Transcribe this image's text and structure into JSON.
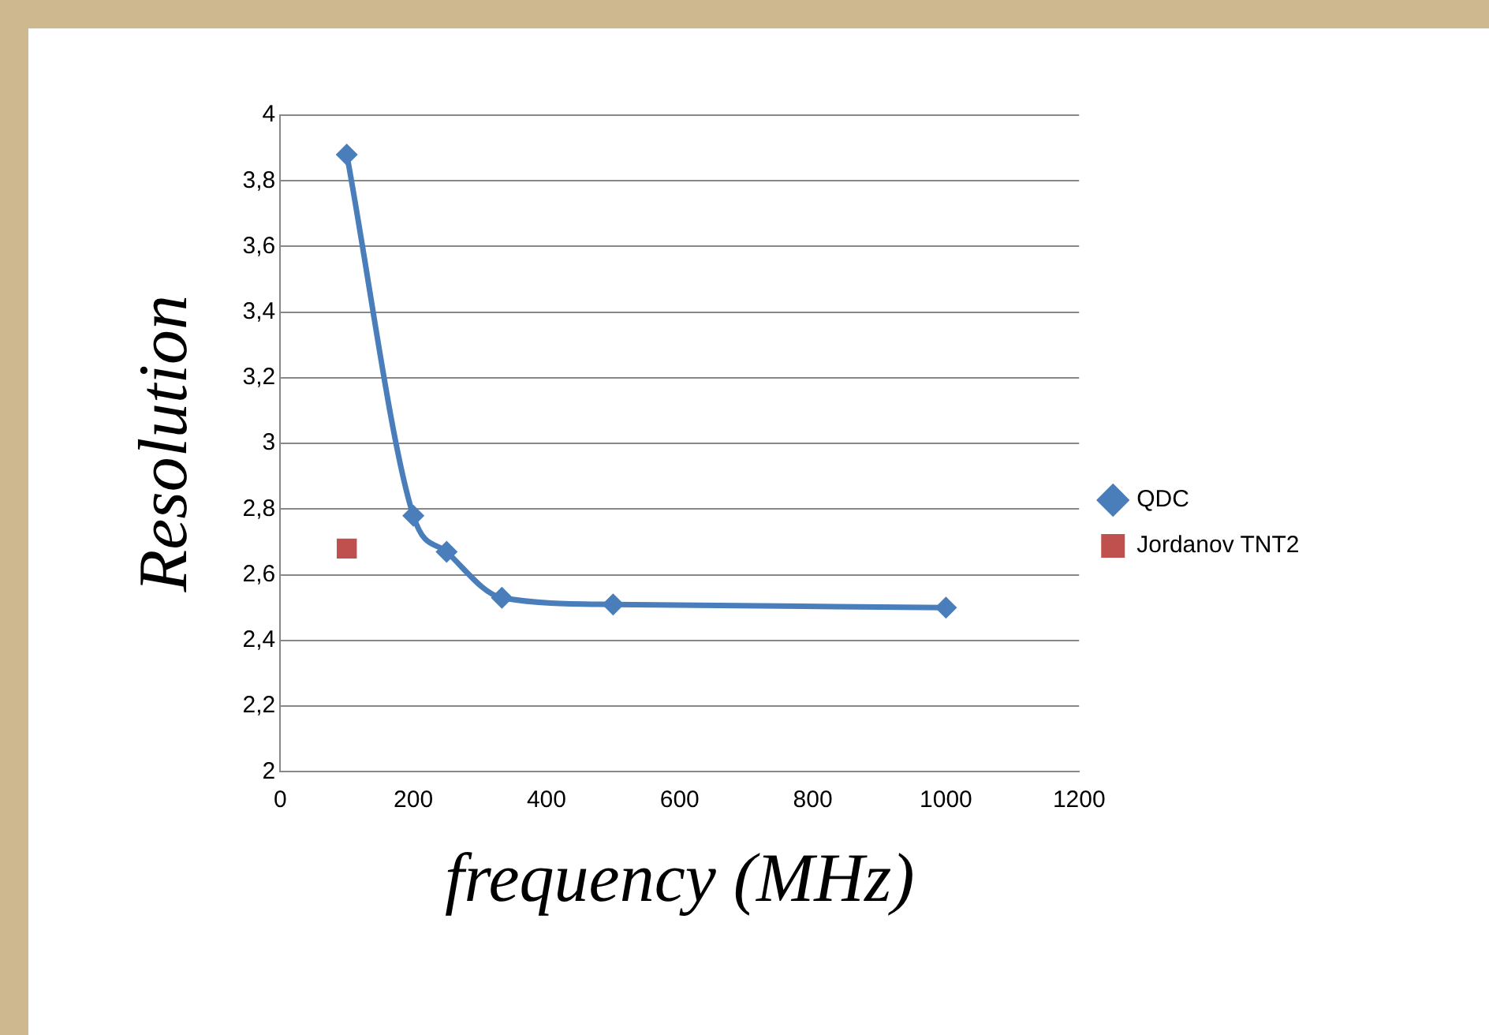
{
  "chart_data": {
    "type": "line",
    "xlabel": "frequency (MHz)",
    "ylabel": "Resolution",
    "xlim": [
      0,
      1200
    ],
    "xticks": [
      0,
      200,
      400,
      600,
      800,
      1000,
      1200
    ],
    "ylim": [
      2,
      4
    ],
    "yticks": [
      {
        "value": 2,
        "label": "2"
      },
      {
        "value": 2.2,
        "label": "2,2"
      },
      {
        "value": 2.4,
        "label": "2,4"
      },
      {
        "value": 2.6,
        "label": "2,6"
      },
      {
        "value": 2.8,
        "label": "2,8"
      },
      {
        "value": 3,
        "label": "3"
      },
      {
        "value": 3.2,
        "label": "3,2"
      },
      {
        "value": 3.4,
        "label": "3,4"
      },
      {
        "value": 3.6,
        "label": "3,6"
      },
      {
        "value": 3.8,
        "label": "3,8"
      },
      {
        "value": 4,
        "label": "4"
      }
    ],
    "grid": "y",
    "legend": "right",
    "series": [
      {
        "name": "QDC",
        "color": "#4a7ebb",
        "marker": "diamond",
        "x": [
          100,
          200,
          250,
          333,
          500,
          1000
        ],
        "values": [
          3.88,
          2.78,
          2.67,
          2.53,
          2.51,
          2.5
        ]
      },
      {
        "name": "Jordanov TNT2",
        "type": "scatter",
        "color": "#c0504d",
        "marker": "square",
        "x": [
          100
        ],
        "values": [
          2.68
        ]
      }
    ]
  }
}
